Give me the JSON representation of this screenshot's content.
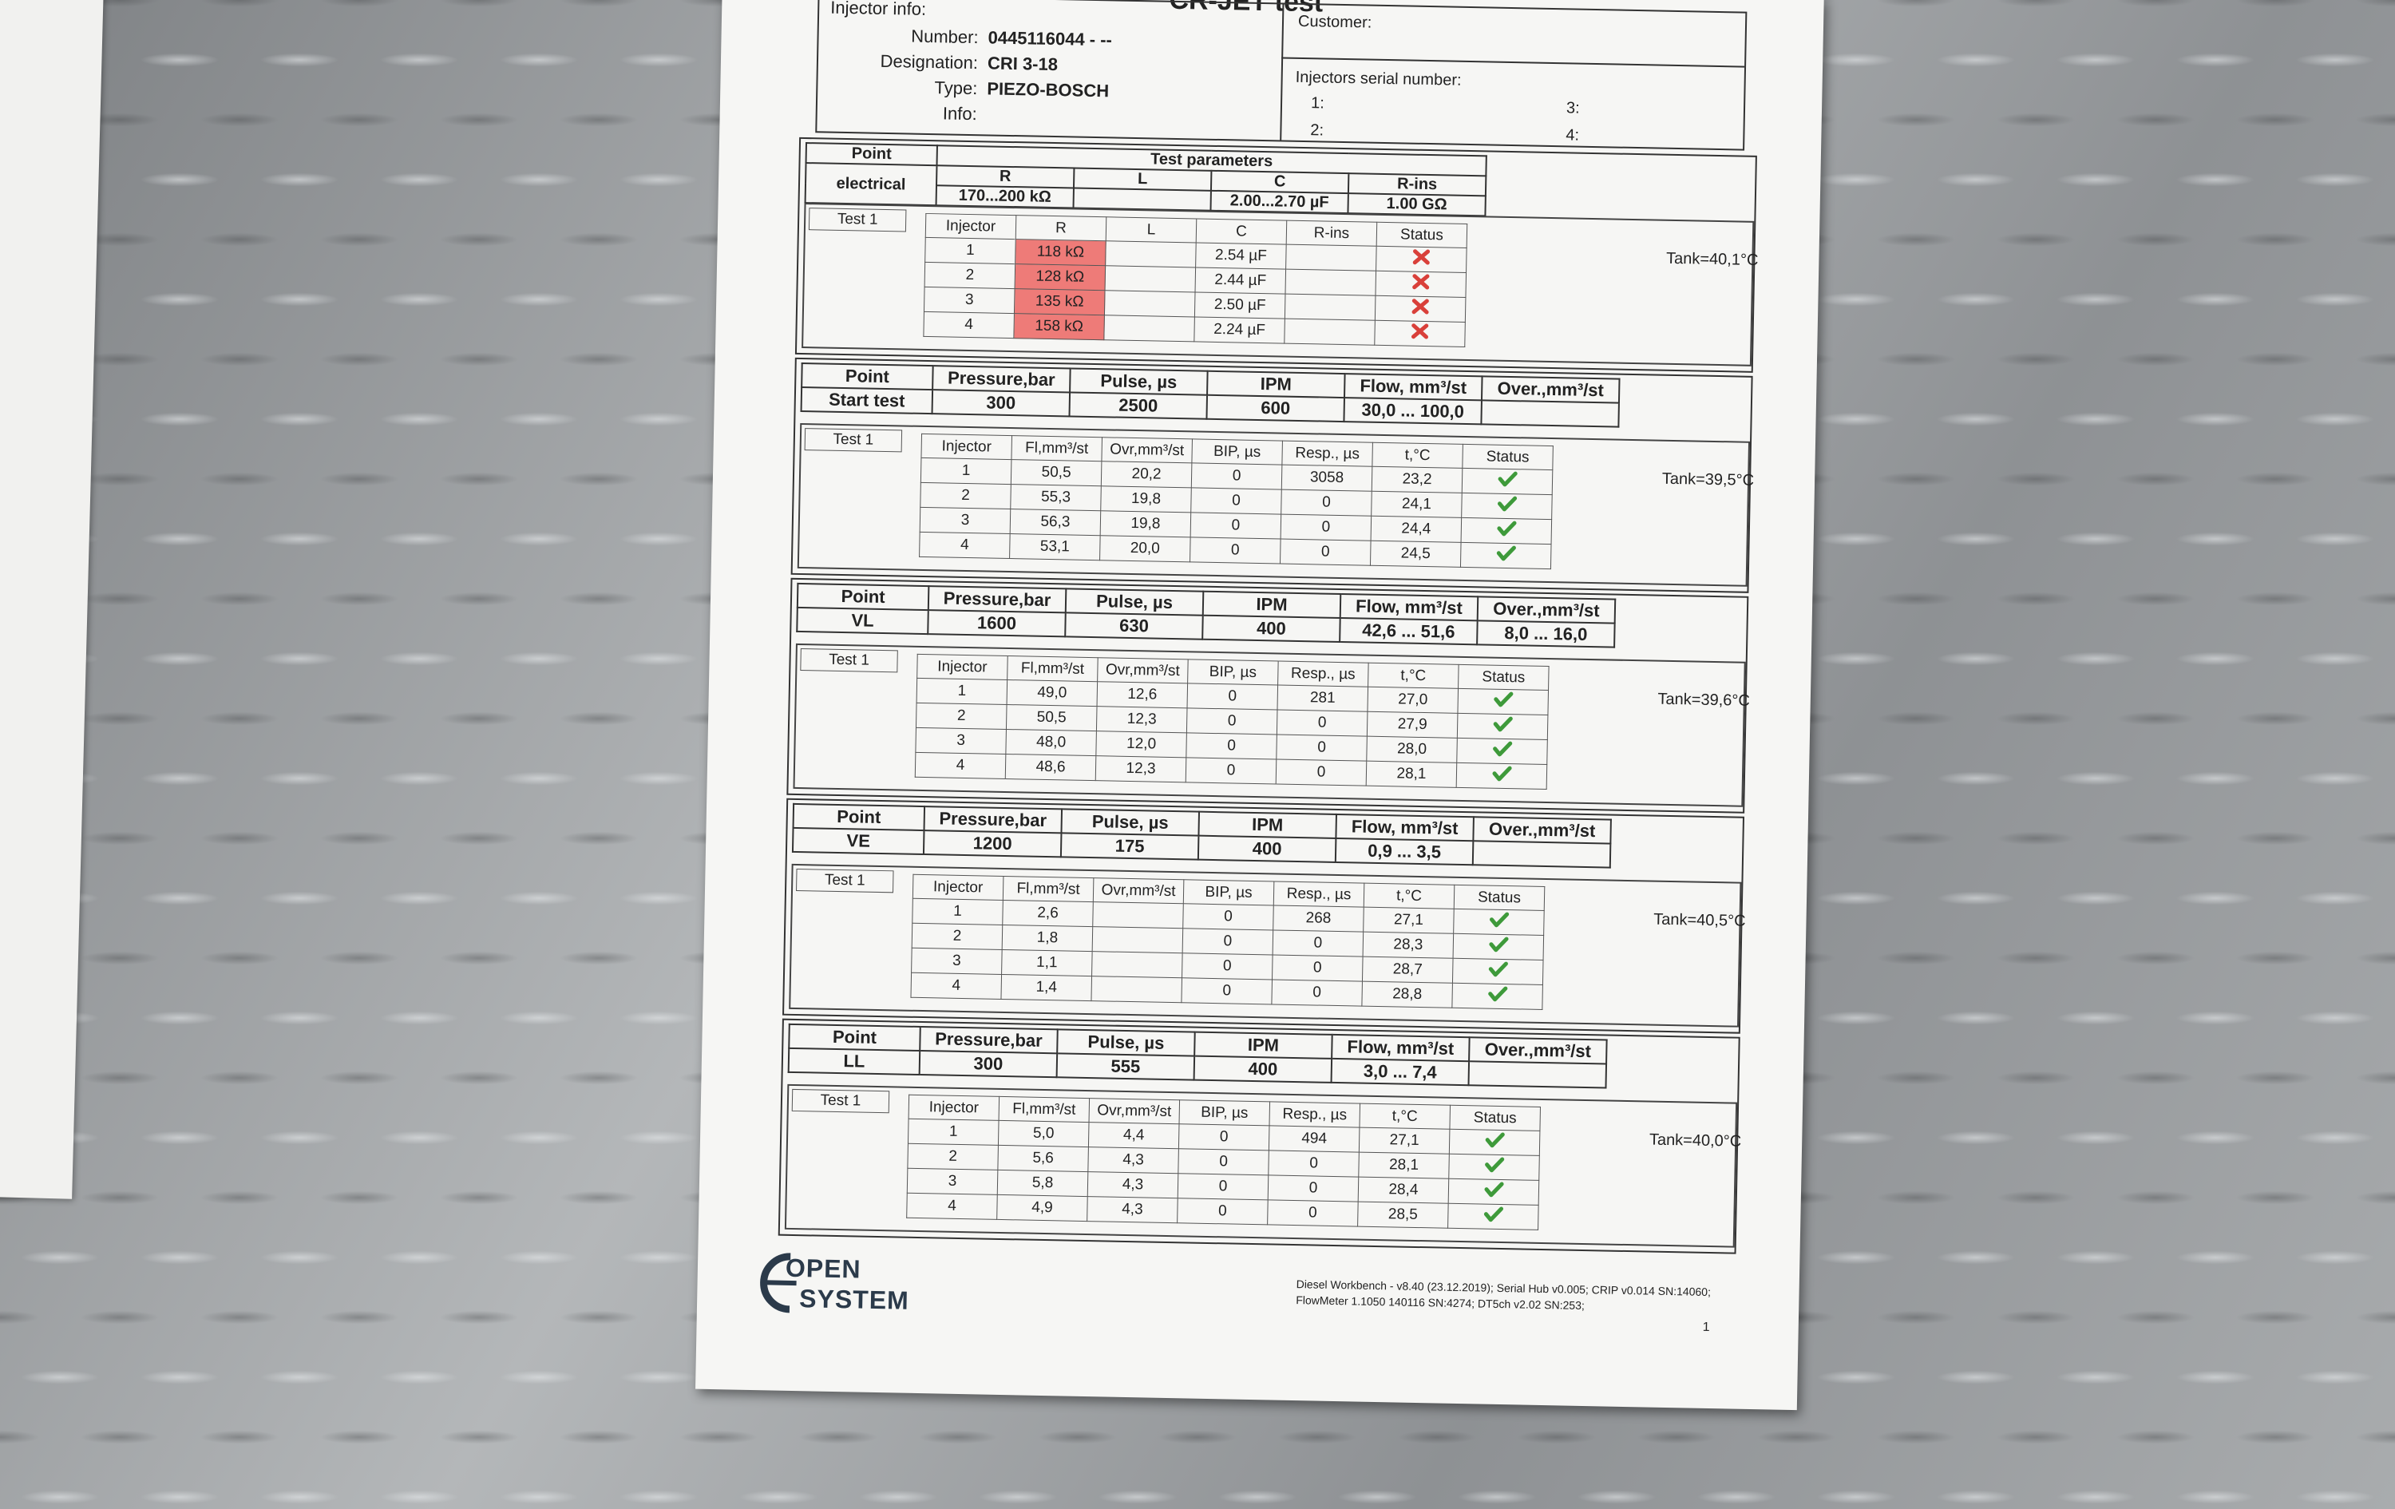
{
  "header": {
    "title": "CR-JET test",
    "injector_info": "Injector info:",
    "fields": [
      {
        "label": "Number:",
        "value": "0445116044 - --"
      },
      {
        "label": "Designation:",
        "value": "CRI 3-18"
      },
      {
        "label": "Type:",
        "value": "PIEZO-BOSCH"
      },
      {
        "label": "Info:",
        "value": null
      }
    ],
    "customer": "Customer:",
    "serial_title": "Injectors serial number:",
    "serials": [
      "1:",
      "2:",
      "3:",
      "4:"
    ]
  },
  "sections": [
    {
      "title": "Test parameters",
      "params": {
        "headers": [
          "Point",
          "R",
          "L",
          "C",
          "R-ins"
        ],
        "values": [
          "electrical",
          "170...200 kΩ",
          null,
          "2.00...2.70 µF",
          "1.00 GΩ"
        ]
      },
      "test_label": "Test 1",
      "columns": [
        "Injector",
        "R",
        "L",
        "C",
        "R-ins",
        "Status"
      ],
      "rows": [
        [
          "1",
          "118 kΩ",
          null,
          "2.54 µF",
          null
        ],
        [
          "2",
          "128 kΩ",
          null,
          "2.44 µF",
          null
        ],
        [
          "3",
          "135 kΩ",
          null,
          "2.50 µF",
          null
        ],
        [
          "4",
          "158 kΩ",
          null,
          "2.24 µF",
          null
        ]
      ],
      "tank": "Tank=40,1°C"
    },
    {
      "params": {
        "headers": [
          "Point",
          "Pressure,bar",
          "Pulse, µs",
          "IPM",
          "Flow, mm³/st",
          "Over.,mm³/st"
        ],
        "values": [
          "Start test",
          "300",
          "2500",
          "600",
          "30,0 ... 100,0",
          null
        ]
      },
      "test_label": "Test 1",
      "columns": [
        "Injector",
        "Fl,mm³/st",
        "Ovr,mm³/st",
        "BIP, µs",
        "Resp., µs",
        "t,°C",
        "Status"
      ],
      "rows": [
        [
          "1",
          "50,5",
          "20,2",
          "0",
          "3058",
          "23,2"
        ],
        [
          "2",
          "55,3",
          "19,8",
          "0",
          "0",
          "24,1"
        ],
        [
          "3",
          "56,3",
          "19,8",
          "0",
          "0",
          "24,4"
        ],
        [
          "4",
          "53,1",
          "20,0",
          "0",
          "0",
          "24,5"
        ]
      ],
      "tank": "Tank=39,5°C"
    },
    {
      "params": {
        "headers": [
          "Point",
          "Pressure,bar",
          "Pulse, µs",
          "IPM",
          "Flow, mm³/st",
          "Over.,mm³/st"
        ],
        "values": [
          "VL",
          "1600",
          "630",
          "400",
          "42,6 ... 51,6",
          "8,0 ... 16,0"
        ]
      },
      "test_label": "Test 1",
      "columns": [
        "Injector",
        "Fl,mm³/st",
        "Ovr,mm³/st",
        "BIP, µs",
        "Resp., µs",
        "t,°C",
        "Status"
      ],
      "rows": [
        [
          "1",
          "49,0",
          "12,6",
          "0",
          "281",
          "27,0"
        ],
        [
          "2",
          "50,5",
          "12,3",
          "0",
          "0",
          "27,9"
        ],
        [
          "3",
          "48,0",
          "12,0",
          "0",
          "0",
          "28,0"
        ],
        [
          "4",
          "48,6",
          "12,3",
          "0",
          "0",
          "28,1"
        ]
      ],
      "tank": "Tank=39,6°C"
    },
    {
      "params": {
        "headers": [
          "Point",
          "Pressure,bar",
          "Pulse, µs",
          "IPM",
          "Flow, mm³/st",
          "Over.,mm³/st"
        ],
        "values": [
          "VE",
          "1200",
          "175",
          "400",
          "0,9 ... 3,5",
          null
        ]
      },
      "test_label": "Test 1",
      "columns": [
        "Injector",
        "Fl,mm³/st",
        "Ovr,mm³/st",
        "BIP, µs",
        "Resp., µs",
        "t,°C",
        "Status"
      ],
      "rows": [
        [
          "1",
          "2,6",
          null,
          "0",
          "268",
          "27,1"
        ],
        [
          "2",
          "1,8",
          null,
          "0",
          "0",
          "28,3"
        ],
        [
          "3",
          "1,1",
          null,
          "0",
          "0",
          "28,7"
        ],
        [
          "4",
          "1,4",
          null,
          "0",
          "0",
          "28,8"
        ]
      ],
      "tank": "Tank=40,5°C"
    },
    {
      "params": {
        "headers": [
          "Point",
          "Pressure,bar",
          "Pulse, µs",
          "IPM",
          "Flow, mm³/st",
          "Over.,mm³/st"
        ],
        "values": [
          "LL",
          "300",
          "555",
          "400",
          "3,0 ... 7,4",
          null
        ]
      },
      "test_label": "Test 1",
      "columns": [
        "Injector",
        "Fl,mm³/st",
        "Ovr,mm³/st",
        "BIP, µs",
        "Resp., µs",
        "t,°C",
        "Status"
      ],
      "rows": [
        [
          "1",
          "5,0",
          "4,4",
          "0",
          "494",
          "27,1"
        ],
        [
          "2",
          "5,6",
          "4,3",
          "0",
          "0",
          "28,1"
        ],
        [
          "3",
          "5,8",
          "4,3",
          "0",
          "0",
          "28,4"
        ],
        [
          "4",
          "4,9",
          "4,3",
          "0",
          "0",
          "28,5"
        ]
      ],
      "tank": "Tank=40,0°C"
    }
  ],
  "footer": {
    "logo": [
      "OPEN",
      "SYSTEM"
    ],
    "lines": [
      "Diesel Workbench - v8.40 (23.12.2019); Serial Hub v0.005; CRIP v0.014 SN:14060;",
      "FlowMeter 1.1050 140116 SN:4274; DT5ch v2.02 SN:253;"
    ],
    "page": "1"
  }
}
